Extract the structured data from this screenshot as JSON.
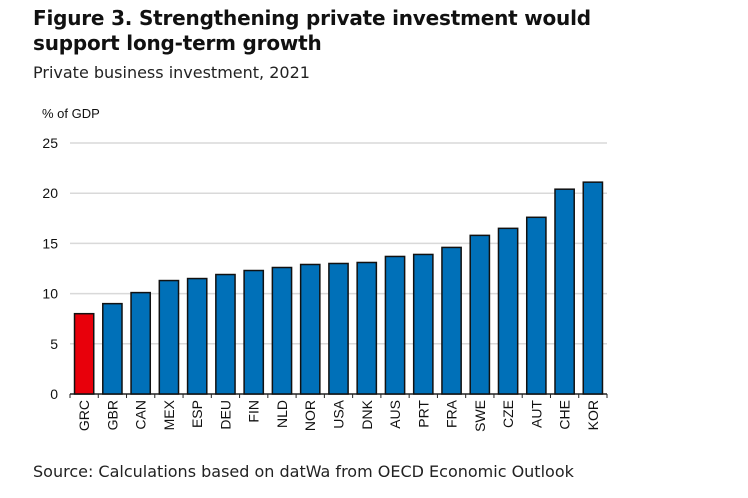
{
  "title": "Figure 3. Strengthening private investment would support long-term growth",
  "subtitle": "Private business investment, 2021",
  "source": "Source: Calculations based on datWa from OECD Economic Outlook",
  "chart_data": {
    "type": "bar",
    "title": "Figure 3. Strengthening private investment would support long-term growth",
    "subtitle": "Private business investment, 2021",
    "xlabel": "",
    "ylabel": "% of GDP",
    "ylim": [
      0,
      25
    ],
    "yticks": [
      0,
      5,
      10,
      15,
      20,
      25
    ],
    "grid": true,
    "categories": [
      "GRC",
      "GBR",
      "CAN",
      "MEX",
      "ESP",
      "DEU",
      "FIN",
      "NLD",
      "NOR",
      "USA",
      "DNK",
      "AUS",
      "PRT",
      "FRA",
      "SWE",
      "CZE",
      "AUT",
      "CHE",
      "KOR"
    ],
    "values": [
      8.0,
      9.0,
      10.1,
      11.3,
      11.5,
      11.9,
      12.3,
      12.6,
      12.9,
      13.0,
      13.1,
      13.7,
      13.9,
      14.6,
      15.8,
      16.5,
      17.6,
      20.4,
      21.1
    ],
    "highlight": "GRC",
    "colors": {
      "default": "#0070b8",
      "highlight": "#e8000b",
      "grid": "#d9d9d9"
    }
  }
}
